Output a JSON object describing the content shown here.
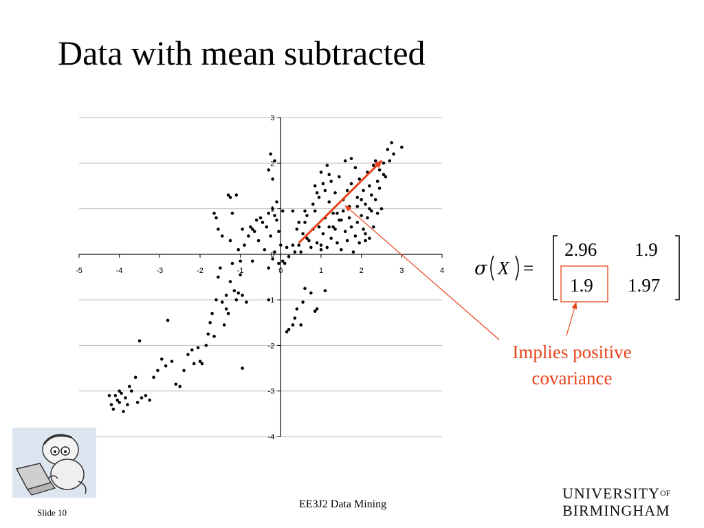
{
  "slide": {
    "title": "Data with mean subtracted",
    "slide_number": "Slide 10",
    "course": "EE3J2 Data Mining",
    "logo_line1": "UNIVERSITY",
    "logo_of": "OF",
    "logo_line2": "BIRMINGHAM",
    "annotation_line1": "Implies positive",
    "annotation_line2": "covariance",
    "accent_color": "#e8431a"
  },
  "formula": {
    "sigma": "σ",
    "argument": "X",
    "equals": "=",
    "matrix": [
      [
        "2.96",
        "1.9"
      ],
      [
        "1.9",
        "1.97"
      ]
    ]
  },
  "chart_data": {
    "type": "scatter",
    "title": "",
    "xlabel": "",
    "ylabel": "",
    "xlim": [
      -5,
      4
    ],
    "ylim": [
      -4,
      3
    ],
    "x_ticks": [
      -5,
      -4,
      -3,
      -2,
      -1,
      0,
      1,
      2,
      3,
      4
    ],
    "y_ticks": [
      -4,
      -3,
      -2,
      -1,
      0,
      1,
      2,
      3
    ],
    "grid": "horizontal",
    "arrow": {
      "from": [
        0.45,
        0.25
      ],
      "to": [
        2.5,
        2.05
      ]
    },
    "points": [
      [
        -4.2,
        -3.3
      ],
      [
        -4.15,
        -3.4
      ],
      [
        -4.1,
        -3.1
      ],
      [
        -4.05,
        -3.2
      ],
      [
        -4.0,
        -3.0
      ],
      [
        -4.0,
        -3.25
      ],
      [
        -3.95,
        -3.05
      ],
      [
        -3.9,
        -3.45
      ],
      [
        -3.85,
        -3.15
      ],
      [
        -3.8,
        -3.3
      ],
      [
        -4.25,
        -3.1
      ],
      [
        -3.75,
        -2.9
      ],
      [
        -3.7,
        -3.0
      ],
      [
        -3.6,
        -2.7
      ],
      [
        -3.55,
        -3.25
      ],
      [
        -3.5,
        -1.9
      ],
      [
        -3.45,
        -3.15
      ],
      [
        -3.35,
        -3.1
      ],
      [
        -3.25,
        -3.2
      ],
      [
        -3.15,
        -2.7
      ],
      [
        -3.05,
        -2.55
      ],
      [
        -2.95,
        -2.3
      ],
      [
        -2.85,
        -2.45
      ],
      [
        -2.8,
        -1.45
      ],
      [
        -2.7,
        -2.35
      ],
      [
        -2.6,
        -2.85
      ],
      [
        -2.5,
        -2.9
      ],
      [
        -2.4,
        -2.55
      ],
      [
        -2.3,
        -2.2
      ],
      [
        -2.2,
        -2.1
      ],
      [
        -2.15,
        -2.4
      ],
      [
        -2.05,
        -2.05
      ],
      [
        -2.0,
        -2.35
      ],
      [
        -1.95,
        -2.4
      ],
      [
        -1.85,
        -2.0
      ],
      [
        -1.8,
        -1.75
      ],
      [
        -1.75,
        -1.5
      ],
      [
        -1.7,
        -1.3
      ],
      [
        -1.65,
        -1.8
      ],
      [
        -1.6,
        -1.0
      ],
      [
        -1.55,
        -0.5
      ],
      [
        -1.5,
        -0.3
      ],
      [
        -1.45,
        -1.05
      ],
      [
        -1.4,
        -1.55
      ],
      [
        -1.35,
        -0.9
      ],
      [
        -1.3,
        -1.3
      ],
      [
        -1.25,
        -0.6
      ],
      [
        -1.2,
        -0.2
      ],
      [
        -1.15,
        -0.8
      ],
      [
        -1.1,
        -1.0
      ],
      [
        -1.05,
        0.1
      ],
      [
        -1.0,
        -0.15
      ],
      [
        -0.95,
        -0.9
      ],
      [
        -0.9,
        0.2
      ],
      [
        -0.85,
        -1.05
      ],
      [
        -0.8,
        0.4
      ],
      [
        -0.75,
        0.6
      ],
      [
        -0.7,
        0.55
      ],
      [
        -0.65,
        0.5
      ],
      [
        -0.6,
        0.75
      ],
      [
        -0.55,
        0.3
      ],
      [
        -0.5,
        0.8
      ],
      [
        -0.45,
        0.7
      ],
      [
        -0.4,
        0.1
      ],
      [
        -0.35,
        0.6
      ],
      [
        -0.3,
        0.9
      ],
      [
        -0.25,
        0.4
      ],
      [
        -0.2,
        1.0
      ],
      [
        -0.15,
        0.85
      ],
      [
        -0.1,
        0.75
      ],
      [
        -0.05,
        0.5
      ],
      [
        0.0,
        0.2
      ],
      [
        0.05,
        0.95
      ],
      [
        -0.15,
        2.05
      ],
      [
        -0.2,
        1.65
      ],
      [
        -0.25,
        2.2
      ],
      [
        -0.3,
        1.85
      ],
      [
        -0.1,
        1.15
      ],
      [
        -0.3,
        -0.3
      ],
      [
        -0.2,
        -0.1
      ],
      [
        -0.15,
        0.05
      ],
      [
        -0.05,
        -0.2
      ],
      [
        0.05,
        -0.15
      ],
      [
        -1.0,
        -0.45
      ],
      [
        -1.25,
        0.3
      ],
      [
        -1.45,
        0.4
      ],
      [
        -1.55,
        0.55
      ],
      [
        -1.6,
        0.8
      ],
      [
        -1.65,
        0.9
      ],
      [
        -1.2,
        0.9
      ],
      [
        -1.3,
        1.3
      ],
      [
        -1.25,
        1.25
      ],
      [
        -1.1,
        1.3
      ],
      [
        -0.95,
        0.55
      ],
      [
        -0.7,
        -0.15
      ],
      [
        -1.05,
        -0.85
      ],
      [
        -1.35,
        -1.2
      ],
      [
        -0.95,
        -2.5
      ],
      [
        -0.3,
        -1.0
      ],
      [
        0.1,
        -0.2
      ],
      [
        0.15,
        -1.7
      ],
      [
        0.2,
        -1.65
      ],
      [
        0.3,
        -1.55
      ],
      [
        0.35,
        -1.4
      ],
      [
        0.4,
        -1.2
      ],
      [
        0.5,
        -1.55
      ],
      [
        0.55,
        -1.05
      ],
      [
        0.6,
        -0.75
      ],
      [
        0.75,
        -0.85
      ],
      [
        0.85,
        -1.25
      ],
      [
        0.9,
        -1.2
      ],
      [
        1.1,
        -0.8
      ],
      [
        0.15,
        0.15
      ],
      [
        0.2,
        -0.05
      ],
      [
        0.3,
        0.2
      ],
      [
        0.35,
        0.05
      ],
      [
        0.4,
        0.55
      ],
      [
        0.45,
        0.2
      ],
      [
        0.5,
        0.05
      ],
      [
        0.55,
        0.45
      ],
      [
        0.6,
        0.7
      ],
      [
        0.65,
        0.85
      ],
      [
        0.7,
        0.3
      ],
      [
        0.75,
        0.15
      ],
      [
        0.8,
        0.55
      ],
      [
        0.85,
        0.95
      ],
      [
        0.9,
        0.25
      ],
      [
        0.95,
        0.6
      ],
      [
        1.0,
        0.2
      ],
      [
        1.05,
        0.45
      ],
      [
        1.1,
        0.8
      ],
      [
        1.15,
        0.15
      ],
      [
        1.2,
        0.6
      ],
      [
        1.25,
        0.35
      ],
      [
        1.3,
        0.9
      ],
      [
        1.35,
        0.55
      ],
      [
        1.4,
        0.25
      ],
      [
        1.45,
        0.75
      ],
      [
        1.5,
        0.1
      ],
      [
        1.55,
        0.95
      ],
      [
        1.6,
        0.5
      ],
      [
        1.65,
        0.3
      ],
      [
        1.7,
        0.8
      ],
      [
        1.75,
        0.6
      ],
      [
        1.8,
        0.05
      ],
      [
        1.85,
        0.4
      ],
      [
        1.9,
        0.7
      ],
      [
        1.95,
        0.25
      ],
      [
        2.0,
        0.85
      ],
      [
        2.05,
        0.55
      ],
      [
        2.1,
        0.45
      ],
      [
        2.15,
        0.8
      ],
      [
        2.2,
        0.35
      ],
      [
        2.25,
        0.95
      ],
      [
        2.3,
        0.6
      ],
      [
        0.8,
        1.1
      ],
      [
        0.85,
        1.5
      ],
      [
        0.9,
        1.35
      ],
      [
        0.95,
        1.25
      ],
      [
        1.0,
        1.8
      ],
      [
        1.05,
        1.55
      ],
      [
        1.1,
        1.4
      ],
      [
        1.15,
        1.95
      ],
      [
        1.2,
        1.15
      ],
      [
        1.25,
        1.6
      ],
      [
        1.35,
        1.35
      ],
      [
        1.45,
        1.7
      ],
      [
        1.55,
        1.2
      ],
      [
        1.65,
        1.4
      ],
      [
        1.75,
        1.55
      ],
      [
        1.85,
        1.9
      ],
      [
        1.9,
        1.25
      ],
      [
        1.95,
        1.65
      ],
      [
        2.05,
        1.4
      ],
      [
        2.1,
        1.1
      ],
      [
        2.15,
        1.8
      ],
      [
        2.2,
        1.5
      ],
      [
        2.25,
        1.3
      ],
      [
        2.3,
        1.95
      ],
      [
        2.35,
        1.2
      ],
      [
        2.4,
        1.6
      ],
      [
        2.45,
        1.85
      ],
      [
        2.5,
        1.0
      ],
      [
        2.55,
        2.0
      ],
      [
        2.6,
        1.7
      ],
      [
        2.65,
        2.3
      ],
      [
        2.7,
        2.05
      ],
      [
        2.75,
        2.45
      ],
      [
        2.8,
        2.2
      ],
      [
        3.0,
        2.35
      ],
      [
        1.6,
        2.05
      ],
      [
        1.75,
        2.1
      ],
      [
        2.35,
        2.05
      ],
      [
        2.45,
        1.45
      ],
      [
        2.55,
        1.75
      ],
      [
        1.4,
        0.9
      ],
      [
        1.5,
        0.75
      ],
      [
        1.3,
        0.6
      ],
      [
        0.65,
        0.35
      ],
      [
        0.45,
        0.7
      ],
      [
        2.0,
        1.2
      ],
      [
        1.7,
        1.05
      ],
      [
        1.9,
        1.05
      ],
      [
        2.2,
        1.0
      ],
      [
        2.4,
        0.9
      ],
      [
        1.0,
        0.1
      ],
      [
        0.3,
        0.95
      ],
      [
        0.6,
        0.95
      ],
      [
        2.1,
        0.3
      ],
      [
        1.2,
        1.75
      ]
    ]
  }
}
